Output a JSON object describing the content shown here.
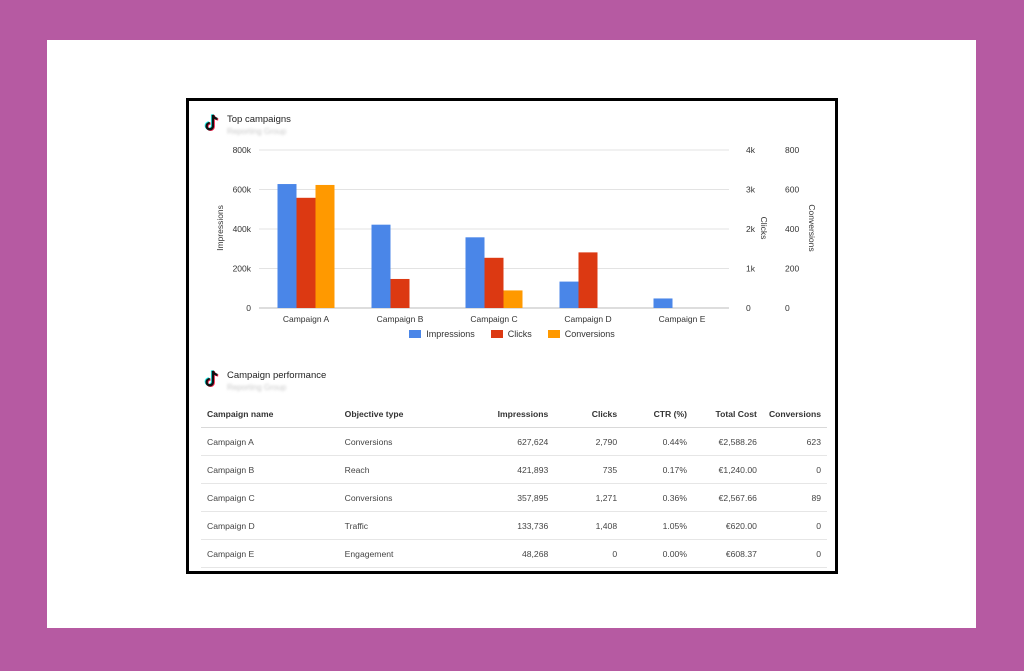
{
  "chart_section": {
    "title": "Top campaigns",
    "subtitle": "Reporting Group"
  },
  "chart_data": {
    "type": "bar",
    "title": "Top campaigns",
    "categories": [
      "Campaign A",
      "Campaign B",
      "Campaign C",
      "Campaign D",
      "Campaign E"
    ],
    "series": [
      {
        "name": "Impressions",
        "axis": "left",
        "color": "#4a86e8",
        "values": [
          627624,
          421893,
          357895,
          133736,
          48268
        ]
      },
      {
        "name": "Clicks",
        "axis": "right1",
        "color": "#dc3912",
        "values": [
          2790,
          735,
          1271,
          1408,
          0
        ]
      },
      {
        "name": "Conversions",
        "axis": "right2",
        "color": "#ff9900",
        "values": [
          623,
          0,
          89,
          0,
          0
        ]
      }
    ],
    "axes": {
      "left": {
        "label": "Impressions",
        "min": 0,
        "max": 800000,
        "ticks": [
          "0",
          "200k",
          "400k",
          "600k",
          "800k"
        ]
      },
      "right1": {
        "label": "Clicks",
        "min": 0,
        "max": 4000,
        "ticks": [
          "0",
          "1k",
          "2k",
          "3k",
          "4k"
        ]
      },
      "right2": {
        "label": "Conversions",
        "min": 0,
        "max": 800,
        "ticks": [
          "0",
          "200",
          "400",
          "600",
          "800"
        ]
      }
    },
    "grid": true,
    "legend": "bottom"
  },
  "table_section": {
    "title": "Campaign performance",
    "subtitle": "Reporting Group",
    "columns": [
      "Campaign name",
      "Objective type",
      "Impressions",
      "Clicks",
      "CTR (%)",
      "Total Cost",
      "Conversions"
    ],
    "rows": [
      [
        "Campaign A",
        "Conversions",
        "627,624",
        "2,790",
        "0.44%",
        "€2,588.26",
        "623"
      ],
      [
        "Campaign B",
        "Reach",
        "421,893",
        "735",
        "0.17%",
        "€1,240.00",
        "0"
      ],
      [
        "Campaign C",
        "Conversions",
        "357,895",
        "1,271",
        "0.36%",
        "€2,567.66",
        "89"
      ],
      [
        "Campaign D",
        "Traffic",
        "133,736",
        "1,408",
        "1.05%",
        "€620.00",
        "0"
      ],
      [
        "Campaign E",
        "Engagement",
        "48,268",
        "0",
        "0.00%",
        "€608.37",
        "0"
      ]
    ]
  }
}
